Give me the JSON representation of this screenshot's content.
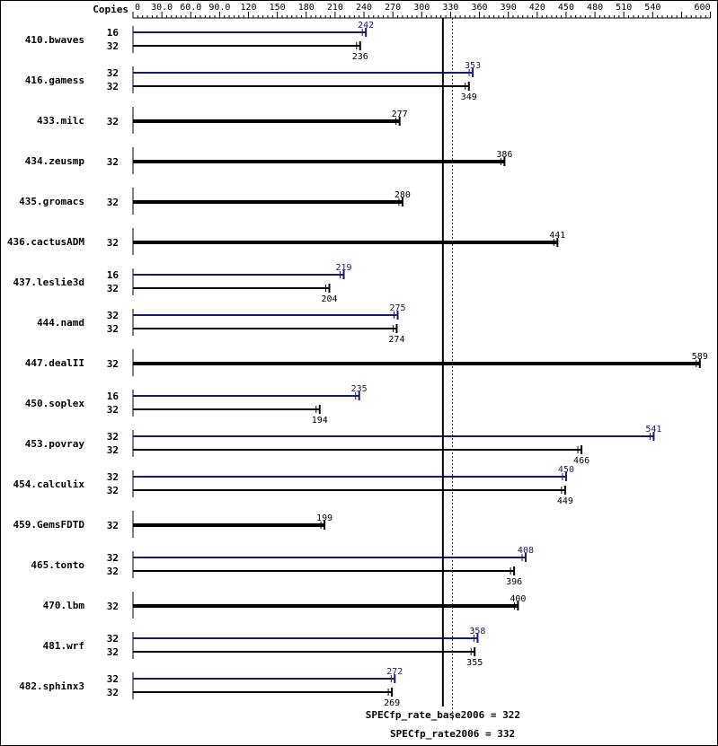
{
  "chart_data": {
    "type": "bar",
    "copies_header": "Copies",
    "x_ticks": [
      "0",
      "30.0",
      "60.0",
      "90.0",
      "120",
      "150",
      "180",
      "210",
      "240",
      "270",
      "300",
      "330",
      "360",
      "390",
      "420",
      "450",
      "480",
      "510",
      "540",
      "600"
    ],
    "x_tick_values": [
      0,
      30,
      60,
      90,
      120,
      150,
      180,
      210,
      240,
      270,
      300,
      330,
      360,
      390,
      420,
      450,
      480,
      510,
      540,
      600
    ],
    "xlim": [
      0,
      600
    ],
    "reference_lines": [
      {
        "label": "SPECfp_rate_base2006 = 322",
        "value": 322,
        "color": "#000000",
        "style": "solid"
      },
      {
        "label": "SPECfp_rate2006 = 332",
        "value": 332,
        "color": "#191970",
        "style": "dotted"
      }
    ],
    "colors": {
      "base": "#000000",
      "peak": "#191970"
    },
    "benchmarks": [
      {
        "name": "410.bwaves",
        "peak": {
          "copies": "16",
          "value": 242
        },
        "base": {
          "copies": "32",
          "value": 236
        }
      },
      {
        "name": "416.gamess",
        "peak": {
          "copies": "32",
          "value": 353
        },
        "base": {
          "copies": "32",
          "value": 349
        }
      },
      {
        "name": "433.milc",
        "base": {
          "copies": "32",
          "value": 277
        }
      },
      {
        "name": "434.zeusmp",
        "base": {
          "copies": "32",
          "value": 386
        }
      },
      {
        "name": "435.gromacs",
        "base": {
          "copies": "32",
          "value": 280
        }
      },
      {
        "name": "436.cactusADM",
        "base": {
          "copies": "32",
          "value": 441
        }
      },
      {
        "name": "437.leslie3d",
        "peak": {
          "copies": "16",
          "value": 219
        },
        "base": {
          "copies": "32",
          "value": 204
        }
      },
      {
        "name": "444.namd",
        "peak": {
          "copies": "32",
          "value": 275
        },
        "base": {
          "copies": "32",
          "value": 274
        }
      },
      {
        "name": "447.dealII",
        "base": {
          "copies": "32",
          "value": 589
        }
      },
      {
        "name": "450.soplex",
        "peak": {
          "copies": "16",
          "value": 235
        },
        "base": {
          "copies": "32",
          "value": 194
        }
      },
      {
        "name": "453.povray",
        "peak": {
          "copies": "32",
          "value": 541
        },
        "base": {
          "copies": "32",
          "value": 466
        }
      },
      {
        "name": "454.calculix",
        "peak": {
          "copies": "32",
          "value": 450
        },
        "base": {
          "copies": "32",
          "value": 449
        }
      },
      {
        "name": "459.GemsFDTD",
        "base": {
          "copies": "32",
          "value": 199
        }
      },
      {
        "name": "465.tonto",
        "peak": {
          "copies": "32",
          "value": 408
        },
        "base": {
          "copies": "32",
          "value": 396
        }
      },
      {
        "name": "470.lbm",
        "base": {
          "copies": "32",
          "value": 400
        }
      },
      {
        "name": "481.wrf",
        "peak": {
          "copies": "32",
          "value": 358
        },
        "base": {
          "copies": "32",
          "value": 355
        }
      },
      {
        "name": "482.sphinx3",
        "peak": {
          "copies": "32",
          "value": 272
        },
        "base": {
          "copies": "32",
          "value": 269
        }
      }
    ]
  }
}
